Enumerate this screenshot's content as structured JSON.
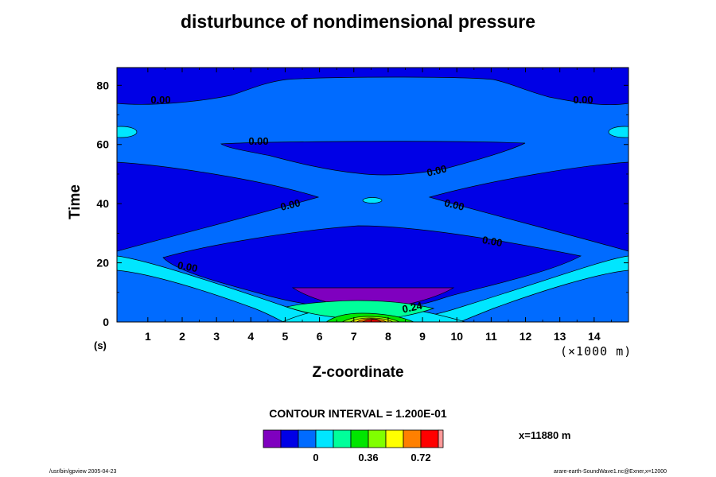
{
  "chart_data": {
    "type": "heatmap",
    "title": "disturbunce of nondimensional pressure",
    "xlabel": "Z-coordinate",
    "ylabel": "Time",
    "x_unit": "(×1000 m)",
    "y_unit": "(s)",
    "xlim": [
      0.1,
      15
    ],
    "ylim": [
      0,
      86
    ],
    "x_ticks": [
      "1",
      "2",
      "3",
      "4",
      "5",
      "6",
      "7",
      "8",
      "9",
      "10",
      "11",
      "12",
      "13",
      "14"
    ],
    "y_ticks": [
      "0",
      "20",
      "40",
      "60",
      "80"
    ],
    "contour_labels": [
      "0.00",
      "0.00",
      "0.00",
      "0.00",
      "0.00",
      "0.00",
      "0.00",
      "0.00",
      "0.24"
    ],
    "contour_interval_text": "CONTOUR INTERVAL = 1.200E-01",
    "slice_text": "x=11880 m",
    "colorbar": {
      "levels": [
        "-0.24",
        "-0.12",
        "0",
        "0.12",
        "0.24",
        "0.36",
        "0.48",
        "0.60",
        "0.72",
        "0.84",
        "0.96"
      ],
      "colors": [
        "#7f00bf",
        "#0000e6",
        "#006bff",
        "#00e6ff",
        "#00ff9a",
        "#00e600",
        "#80ff00",
        "#ffff00",
        "#ff8000",
        "#ff0000",
        "#ff9a9a"
      ],
      "tick_labels": [
        "0",
        "0.36",
        "0.72"
      ]
    }
  },
  "footer": {
    "left": "/usr/bin/gpview 2005-04-23",
    "right": "arare-earth-SoundWave1.nc@Exner,x=12000"
  }
}
